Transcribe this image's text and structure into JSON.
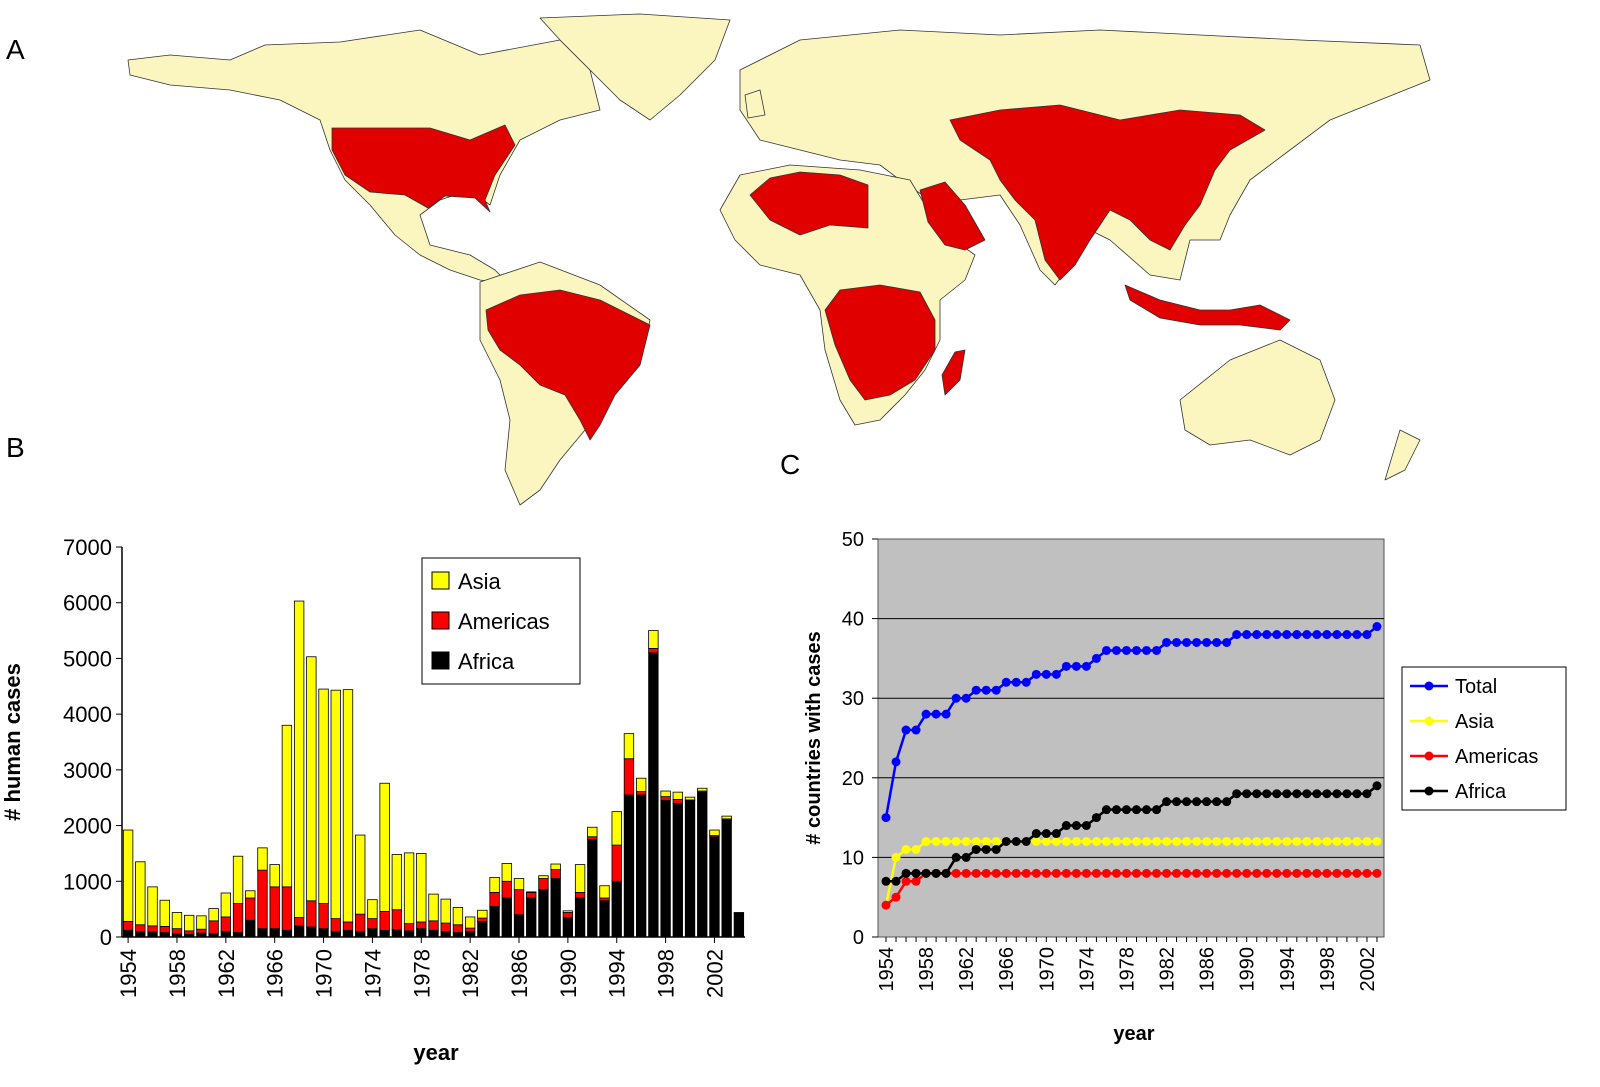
{
  "panels": {
    "a": "A",
    "b": "B",
    "c": "C"
  },
  "colors": {
    "land": "#fbf6c0",
    "affected": "#e00000",
    "asia": "#ffff00",
    "americas": "#ff0000",
    "africa": "#000000",
    "total": "#0000ff",
    "plot_bg": "#c0c0c0"
  },
  "map": {
    "affected_countries": [
      "United States",
      "Brazil",
      "Bolivia",
      "Peru",
      "Paraguay",
      "Algeria",
      "Libya",
      "Saudi Arabia",
      "Yemen",
      "Iran",
      "Pakistan",
      "India",
      "China",
      "Mongolia",
      "Kazakhstan",
      "Myanmar",
      "Thailand",
      "Vietnam",
      "Indonesia",
      "Malaysia",
      "Dem. Rep. Congo",
      "Angola",
      "Zambia",
      "Zimbabwe",
      "Mozambique",
      "Namibia",
      "Botswana",
      "Tanzania",
      "Madagascar",
      "South Africa"
    ]
  },
  "chart_data": [
    {
      "type": "bar",
      "stacked": true,
      "xlabel": "year",
      "ylabel": "# human cases",
      "ylim": [
        0,
        7000
      ],
      "yticks": [
        "0",
        "1000",
        "2000",
        "3000",
        "4000",
        "5000",
        "6000",
        "7000"
      ],
      "xtick_labels": [
        "1954",
        "1958",
        "1962",
        "1966",
        "1970",
        "1974",
        "1978",
        "1982",
        "1986",
        "1990",
        "1994",
        "1998",
        "2002"
      ],
      "legend_position": "top-right",
      "categories": [
        1954,
        1955,
        1956,
        1957,
        1958,
        1959,
        1960,
        1961,
        1962,
        1963,
        1964,
        1965,
        1966,
        1967,
        1968,
        1969,
        1970,
        1971,
        1972,
        1973,
        1974,
        1975,
        1976,
        1977,
        1978,
        1979,
        1980,
        1981,
        1982,
        1983,
        1984,
        1985,
        1986,
        1987,
        1988,
        1989,
        1990,
        1991,
        1992,
        1993,
        1994,
        1995,
        1996,
        1997,
        1998,
        1999,
        2000,
        2001,
        2002,
        2003,
        2004
      ],
      "series": [
        {
          "name": "Africa",
          "values": [
            120,
            100,
            90,
            80,
            60,
            50,
            70,
            60,
            100,
            80,
            300,
            150,
            150,
            120,
            200,
            180,
            150,
            100,
            120,
            100,
            150,
            120,
            130,
            110,
            150,
            120,
            100,
            80,
            100,
            280,
            550,
            700,
            400,
            700,
            850,
            1050,
            350,
            700,
            1750,
            650,
            1000,
            2550,
            2550,
            5100,
            2450,
            2400,
            2450,
            2600,
            1800,
            2100,
            430
          ]
        },
        {
          "name": "Americas",
          "values": [
            160,
            120,
            110,
            110,
            90,
            60,
            70,
            230,
            260,
            520,
            400,
            1050,
            750,
            780,
            150,
            470,
            450,
            230,
            150,
            310,
            180,
            340,
            360,
            130,
            120,
            170,
            150,
            140,
            60,
            60,
            250,
            300,
            450,
            100,
            200,
            160,
            90,
            100,
            50,
            50,
            650,
            650,
            60,
            80,
            70,
            70,
            10,
            20,
            20,
            20,
            10
          ]
        },
        {
          "name": "Asia",
          "values": [
            1640,
            1130,
            700,
            470,
            290,
            280,
            240,
            220,
            430,
            850,
            130,
            400,
            400,
            2900,
            5680,
            4380,
            3850,
            4100,
            4170,
            1420,
            340,
            2300,
            990,
            1270,
            1230,
            480,
            430,
            310,
            200,
            140,
            270,
            320,
            200,
            10,
            50,
            100,
            30,
            500,
            170,
            220,
            600,
            450,
            240,
            320,
            100,
            130,
            50,
            50,
            100,
            50,
            0
          ]
        }
      ]
    },
    {
      "type": "line",
      "xlabel": "year",
      "ylabel": "# countries with cases",
      "ylim": [
        0,
        50
      ],
      "yticks": [
        "0",
        "10",
        "20",
        "30",
        "40",
        "50"
      ],
      "xtick_labels": [
        "1954",
        "1958",
        "1962",
        "1966",
        "1970",
        "1974",
        "1978",
        "1982",
        "1986",
        "1990",
        "1994",
        "1998",
        "2002"
      ],
      "legend_position": "right",
      "grid": true,
      "x": [
        1954,
        1955,
        1956,
        1957,
        1958,
        1959,
        1960,
        1961,
        1962,
        1963,
        1964,
        1965,
        1966,
        1967,
        1968,
        1969,
        1970,
        1971,
        1972,
        1973,
        1974,
        1975,
        1976,
        1977,
        1978,
        1979,
        1980,
        1981,
        1982,
        1983,
        1984,
        1985,
        1986,
        1987,
        1988,
        1989,
        1990,
        1991,
        1992,
        1993,
        1994,
        1995,
        1996,
        1997,
        1998,
        1999,
        2000,
        2001,
        2002,
        2003
      ],
      "series": [
        {
          "name": "Total",
          "values": [
            15,
            22,
            26,
            26,
            28,
            28,
            28,
            30,
            30,
            31,
            31,
            31,
            32,
            32,
            32,
            33,
            33,
            33,
            34,
            34,
            34,
            35,
            36,
            36,
            36,
            36,
            36,
            36,
            37,
            37,
            37,
            37,
            37,
            37,
            37,
            38,
            38,
            38,
            38,
            38,
            38,
            38,
            38,
            38,
            38,
            38,
            38,
            38,
            38,
            39
          ]
        },
        {
          "name": "Asia",
          "values": [
            4,
            10,
            11,
            11,
            12,
            12,
            12,
            12,
            12,
            12,
            12,
            12,
            12,
            12,
            12,
            12,
            12,
            12,
            12,
            12,
            12,
            12,
            12,
            12,
            12,
            12,
            12,
            12,
            12,
            12,
            12,
            12,
            12,
            12,
            12,
            12,
            12,
            12,
            12,
            12,
            12,
            12,
            12,
            12,
            12,
            12,
            12,
            12,
            12,
            12
          ]
        },
        {
          "name": "Americas",
          "values": [
            4,
            5,
            7,
            7,
            8,
            8,
            8,
            8,
            8,
            8,
            8,
            8,
            8,
            8,
            8,
            8,
            8,
            8,
            8,
            8,
            8,
            8,
            8,
            8,
            8,
            8,
            8,
            8,
            8,
            8,
            8,
            8,
            8,
            8,
            8,
            8,
            8,
            8,
            8,
            8,
            8,
            8,
            8,
            8,
            8,
            8,
            8,
            8,
            8,
            8
          ]
        },
        {
          "name": "Africa",
          "values": [
            7,
            7,
            8,
            8,
            8,
            8,
            8,
            10,
            10,
            11,
            11,
            11,
            12,
            12,
            12,
            13,
            13,
            13,
            14,
            14,
            14,
            15,
            16,
            16,
            16,
            16,
            16,
            16,
            17,
            17,
            17,
            17,
            17,
            17,
            17,
            18,
            18,
            18,
            18,
            18,
            18,
            18,
            18,
            18,
            18,
            18,
            18,
            18,
            18,
            19
          ]
        }
      ]
    }
  ]
}
